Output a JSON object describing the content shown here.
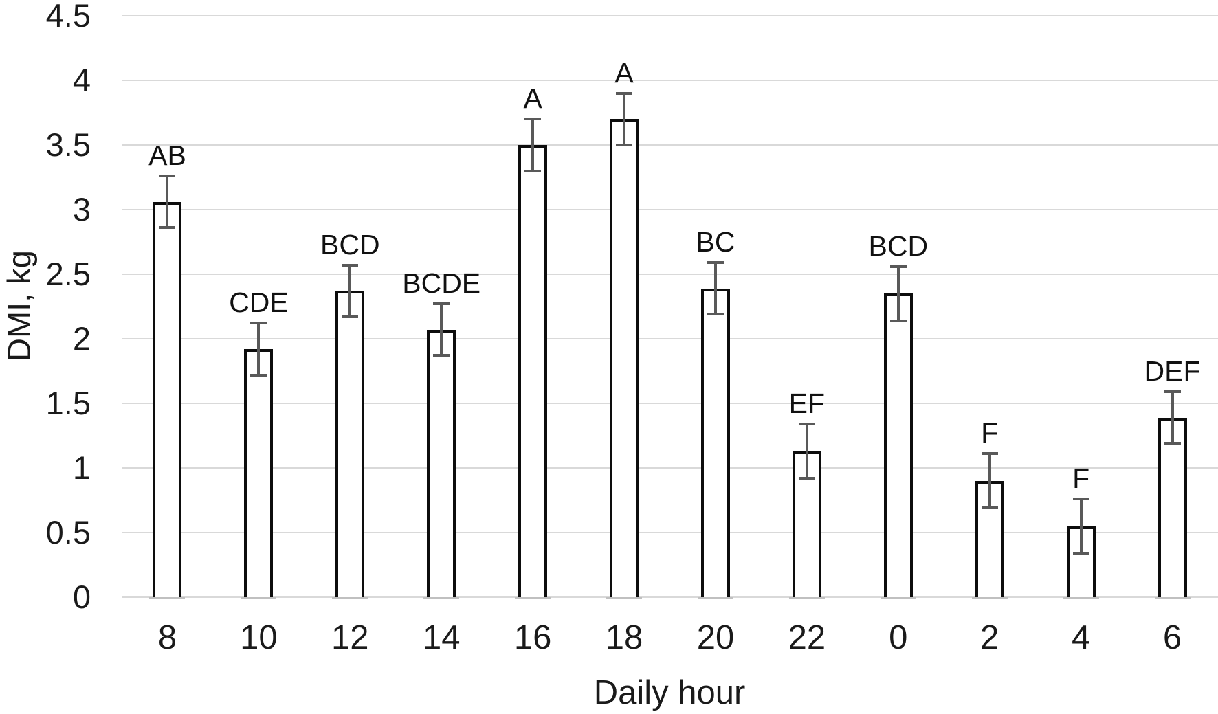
{
  "chart_data": {
    "type": "bar",
    "title": "",
    "xlabel": "Daily hour",
    "ylabel": "DMI, kg",
    "categories": [
      "8",
      "10",
      "12",
      "14",
      "16",
      "18",
      "20",
      "22",
      "0",
      "2",
      "4",
      "6"
    ],
    "values": [
      3.06,
      1.92,
      2.37,
      2.07,
      3.5,
      3.7,
      2.39,
      1.13,
      2.35,
      0.9,
      0.55,
      1.39
    ],
    "error_bars": [
      0.2,
      0.2,
      0.2,
      0.2,
      0.2,
      0.2,
      0.2,
      0.21,
      0.21,
      0.21,
      0.21,
      0.2
    ],
    "significance_labels": [
      "AB",
      "CDE",
      "BCD",
      "BCDE",
      "A",
      "A",
      "BC",
      "EF",
      "BCD",
      "F",
      "F",
      "DEF"
    ],
    "ylim": [
      0,
      4.5
    ],
    "yticks": [
      "4.5",
      "4",
      "3.5",
      "3",
      "2.5",
      "2",
      "1.5",
      "1",
      "0.5",
      "0"
    ],
    "grid": "horizontal",
    "legend": "none",
    "colors": {
      "background": "#ffffff",
      "bar_fill": "#ffffff",
      "bar_border": "#0d0d0d",
      "gridline": "#d9d9d9",
      "error_bar": "#595959",
      "text": "#1a1a1a"
    }
  }
}
